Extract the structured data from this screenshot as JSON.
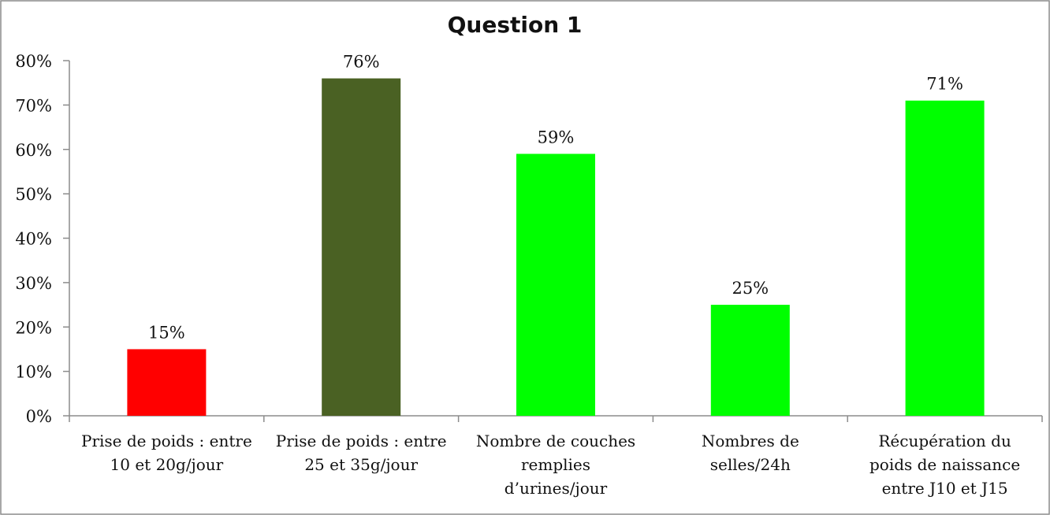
{
  "chart_data": {
    "type": "bar",
    "title": "Question 1",
    "categories": [
      [
        "Prise de poids : entre",
        "10 et 20g/jour"
      ],
      [
        "Prise de poids : entre",
        "25 et 35g/jour"
      ],
      [
        "Nombre de couches",
        "remplies",
        "d’urines/jour"
      ],
      [
        "Nombres de",
        "selles/24h"
      ],
      [
        "Récupération du",
        "poids de naissance",
        "entre J10 et J15"
      ]
    ],
    "values": [
      15,
      76,
      59,
      25,
      71
    ],
    "value_labels": [
      "15%",
      "76%",
      "59%",
      "25%",
      "71%"
    ],
    "bar_colors": [
      "#ff0000",
      "#4a6123",
      "#00ff00",
      "#00ff00",
      "#00ff00"
    ],
    "ylim": [
      0,
      80
    ],
    "yticks": [
      {
        "value": 0,
        "label": "0%"
      },
      {
        "value": 10,
        "label": "10%"
      },
      {
        "value": 20,
        "label": "20%"
      },
      {
        "value": 30,
        "label": "30%"
      },
      {
        "value": 40,
        "label": "40%"
      },
      {
        "value": 50,
        "label": "50%"
      },
      {
        "value": 60,
        "label": "60%"
      },
      {
        "value": 70,
        "label": "70%"
      },
      {
        "value": 80,
        "label": "80%"
      }
    ],
    "grid": false,
    "legend": "none"
  }
}
